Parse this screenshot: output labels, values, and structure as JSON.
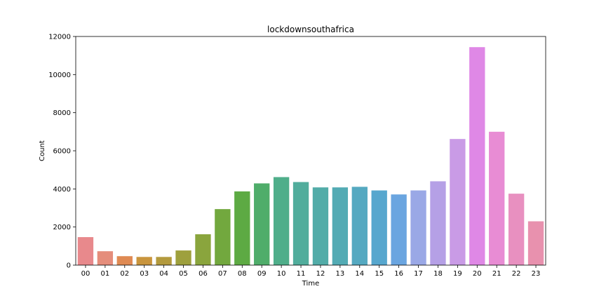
{
  "chart_data": {
    "type": "bar",
    "title": "lockdownsouthafrica",
    "xlabel": "Time",
    "ylabel": "Count",
    "ylim": [
      0,
      12000
    ],
    "yticks": [
      0,
      2000,
      4000,
      6000,
      8000,
      10000,
      12000
    ],
    "grid": false,
    "categories": [
      "00",
      "01",
      "02",
      "03",
      "04",
      "05",
      "06",
      "07",
      "08",
      "09",
      "10",
      "11",
      "12",
      "13",
      "14",
      "15",
      "16",
      "17",
      "18",
      "19",
      "20",
      "21",
      "22",
      "23"
    ],
    "values": [
      1470,
      730,
      470,
      430,
      430,
      770,
      1620,
      2940,
      3870,
      4290,
      4620,
      4360,
      4080,
      4080,
      4110,
      3920,
      3710,
      3920,
      4400,
      6620,
      11440,
      7000,
      3750,
      2300
    ],
    "colors": [
      "#e8898c",
      "#e58d7b",
      "#df8a53",
      "#c9953d",
      "#b39a3d",
      "#9ea03d",
      "#8aa53d",
      "#72a83e",
      "#5daa43",
      "#4fad6a",
      "#4fae8a",
      "#51ad9c",
      "#52aca8",
      "#53abb4",
      "#55a9c1",
      "#57a7ce",
      "#6aa5e0",
      "#9aa8e6",
      "#b5a0e6",
      "#c99be6",
      "#df88e6",
      "#e88cd4",
      "#e890c0",
      "#e891ae"
    ]
  }
}
